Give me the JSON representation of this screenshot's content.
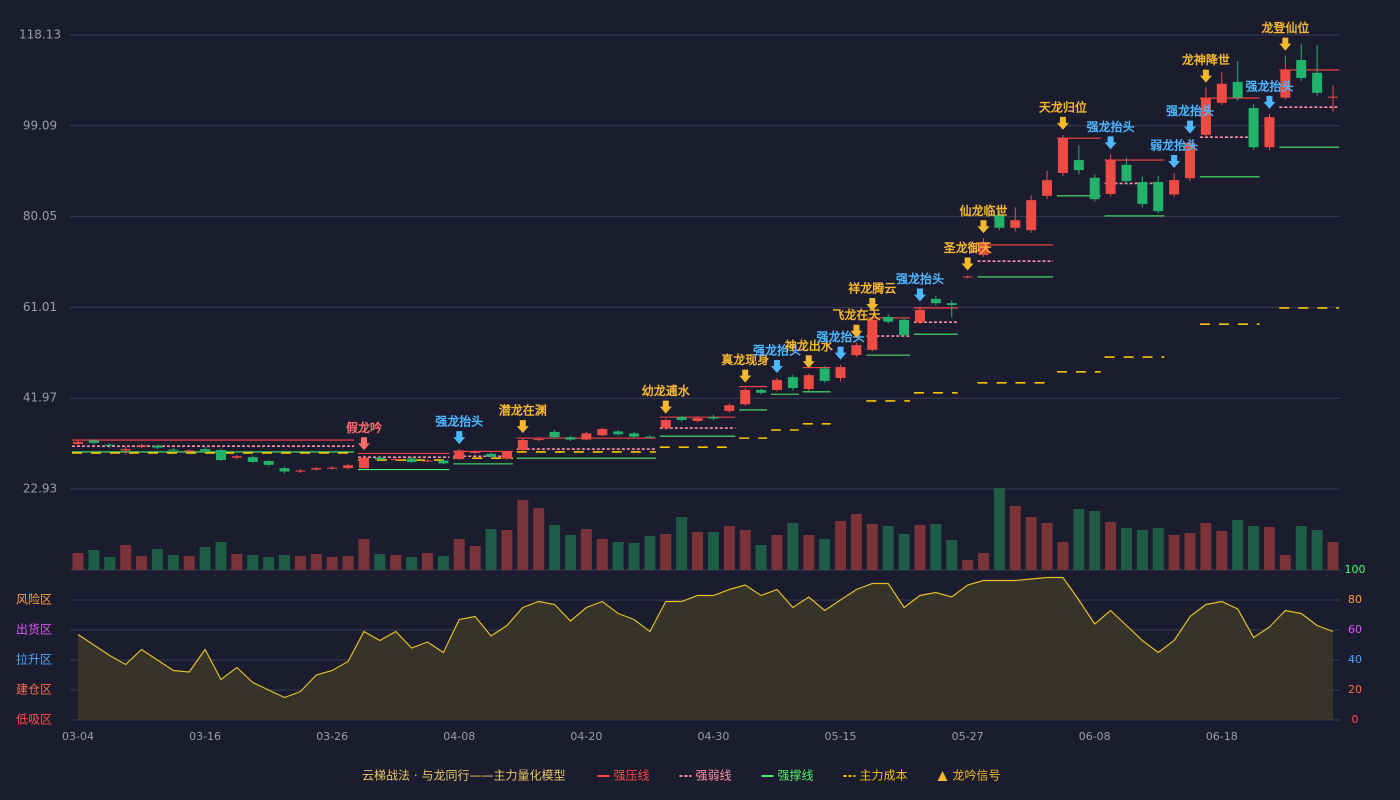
{
  "chart_data": {
    "type": "candlestick",
    "categories": [
      "03-04",
      null,
      null,
      null,
      null,
      null,
      null,
      null,
      "03-16",
      null,
      null,
      null,
      null,
      null,
      null,
      null,
      "03-26",
      null,
      null,
      null,
      null,
      null,
      null,
      null,
      "04-08",
      null,
      null,
      null,
      null,
      null,
      null,
      null,
      "04-20",
      null,
      null,
      null,
      null,
      null,
      null,
      null,
      "04-30",
      null,
      null,
      null,
      null,
      null,
      null,
      null,
      "05-15",
      null,
      null,
      null,
      null,
      null,
      null,
      null,
      "05-27",
      null,
      null,
      null,
      null,
      null,
      null,
      null,
      "06-08",
      null,
      null,
      null,
      null,
      null,
      null,
      null,
      "06-18",
      null,
      null,
      null,
      null,
      null,
      null,
      null
    ],
    "open": [
      32.4,
      33.1,
      32.2,
      31.0,
      31.8,
      32.0,
      31.2,
      30.8,
      31.3,
      31.1,
      29.5,
      29.6,
      28.8,
      27.3,
      26.6,
      27.0,
      27.2,
      27.3,
      27.3,
      29.5,
      29.0,
      29.3,
      28.7,
      28.9,
      29.2,
      30.5,
      30.3,
      29.3,
      31.1,
      33.2,
      34.9,
      33.8,
      33.3,
      34.2,
      35.0,
      34.6,
      33.9,
      35.7,
      38.0,
      37.2,
      38.0,
      39.3,
      40.7,
      43.7,
      43.7,
      46.4,
      43.9,
      48.2,
      46.2,
      51.0,
      52.1,
      59.0,
      58.4,
      57.9,
      62.8,
      61.9,
      67.3,
      72.0,
      80.4,
      77.7,
      77.2,
      84.4,
      89.2,
      91.9,
      88.2,
      84.8,
      90.9,
      87.3,
      87.3,
      84.7,
      88.1,
      97.2,
      103.9,
      108.3,
      102.8,
      94.6,
      105.0,
      112.9,
      110.2,
      105.0
    ],
    "close": [
      32.8,
      32.6,
      32.0,
      31.3,
      32.1,
      31.6,
      31.0,
      31.0,
      30.9,
      29.0,
      29.8,
      28.6,
      28.0,
      26.6,
      26.8,
      27.3,
      27.4,
      27.9,
      29.5,
      29.1,
      29.2,
      28.6,
      28.9,
      28.3,
      31.0,
      30.7,
      29.7,
      30.7,
      33.2,
      33.4,
      33.8,
      33.3,
      34.6,
      35.5,
      34.4,
      33.9,
      33.8,
      37.4,
      37.4,
      37.8,
      37.7,
      40.5,
      43.7,
      43.1,
      45.8,
      44.1,
      46.8,
      45.6,
      48.5,
      53.1,
      58.4,
      58.0,
      55.2,
      60.5,
      61.9,
      61.5,
      67.5,
      74.7,
      77.7,
      79.3,
      83.5,
      87.7,
      96.5,
      89.8,
      83.7,
      91.9,
      87.5,
      82.7,
      81.2,
      87.7,
      95.5,
      105.0,
      107.9,
      105.0,
      94.6,
      100.9,
      110.8,
      109.1,
      106.0,
      105.2
    ],
    "high": [
      33.1,
      33.4,
      32.5,
      31.8,
      32.4,
      32.3,
      31.5,
      31.3,
      31.7,
      31.4,
      30.1,
      29.9,
      29.0,
      27.6,
      27.1,
      27.5,
      27.7,
      28.2,
      30.0,
      29.8,
      29.5,
      29.6,
      29.2,
      29.1,
      31.3,
      31.0,
      30.6,
      30.9,
      33.6,
      33.8,
      35.3,
      34.1,
      34.9,
      35.8,
      35.3,
      34.9,
      34.2,
      37.7,
      38.3,
      38.1,
      38.5,
      40.9,
      44.2,
      44.0,
      46.2,
      46.9,
      47.2,
      48.7,
      49.0,
      53.6,
      59.2,
      59.6,
      58.9,
      61.2,
      63.4,
      62.5,
      67.7,
      75.5,
      81.5,
      82.0,
      84.5,
      89.6,
      97.2,
      95.0,
      88.9,
      93.1,
      92.4,
      88.5,
      88.6,
      89.2,
      96.4,
      107.1,
      110.3,
      112.7,
      103.6,
      101.6,
      113.8,
      116.3,
      116.0,
      107.5
    ],
    "low": [
      32.0,
      32.3,
      31.6,
      30.2,
      31.5,
      31.3,
      30.6,
      30.5,
      30.5,
      28.8,
      29.2,
      28.4,
      27.7,
      26.2,
      26.3,
      26.8,
      27.0,
      27.1,
      27.2,
      28.9,
      28.8,
      28.4,
      28.5,
      28.1,
      29.0,
      30.2,
      29.5,
      29.1,
      30.9,
      32.9,
      33.5,
      33.0,
      33.1,
      34.0,
      34.1,
      33.6,
      33.5,
      35.4,
      37.1,
      36.9,
      37.4,
      38.9,
      40.4,
      42.8,
      43.4,
      43.6,
      43.5,
      45.2,
      45.5,
      50.6,
      51.8,
      57.6,
      54.9,
      57.5,
      61.4,
      58.9,
      67.1,
      71.6,
      77.2,
      76.9,
      76.6,
      83.8,
      88.6,
      88.9,
      83.2,
      84.3,
      86.8,
      82.0,
      80.7,
      84.1,
      87.5,
      96.6,
      103.4,
      104.3,
      94.1,
      94.0,
      104.6,
      108.5,
      105.4,
      102.0
    ],
    "up_color": "#ef4b45",
    "down_color": "#22b26b",
    "ylim": [
      22.93,
      118.13
    ],
    "yticks": [
      22.93,
      41.97,
      61.01,
      80.05,
      99.09,
      118.13
    ],
    "grid": true,
    "volume": {
      "values": [
        17,
        20,
        13,
        25,
        14,
        21,
        15,
        14,
        23,
        28,
        16,
        15,
        13,
        15,
        14,
        16,
        13,
        14,
        31,
        16,
        15,
        13,
        17,
        14,
        31,
        24,
        41,
        40,
        70,
        62,
        45,
        35,
        41,
        31,
        28,
        27,
        34,
        36,
        53,
        38,
        38,
        44,
        40,
        25,
        35,
        47,
        35,
        31,
        49,
        56,
        46,
        44,
        36,
        45,
        46,
        30,
        10,
        17,
        82,
        64,
        53,
        47,
        28,
        61,
        59,
        48,
        42,
        40,
        42,
        35,
        37,
        47,
        39,
        50,
        44,
        43,
        15,
        44,
        40,
        28
      ],
      "up_color": "#7a3338",
      "down_color": "#1f5c45"
    },
    "indicator": {
      "values": [
        57,
        50,
        43,
        37,
        47,
        40,
        33,
        32,
        47,
        27,
        35,
        25,
        20,
        15,
        19,
        30,
        33,
        39,
        59,
        53,
        59,
        48,
        52,
        45,
        67,
        69,
        56,
        63,
        75,
        79,
        77,
        66,
        75,
        79,
        71,
        67,
        59,
        79,
        79,
        83,
        83,
        87,
        90,
        83,
        87,
        75,
        82,
        73,
        80,
        87,
        91,
        91,
        75,
        83,
        85,
        82,
        90,
        93,
        93,
        93,
        94,
        95,
        95,
        80,
        64,
        73,
        63,
        53,
        45,
        53,
        69,
        77,
        79,
        74,
        55,
        62,
        73,
        71,
        63,
        59
      ],
      "color": "#e2bf2a",
      "fill": "#3a3629",
      "ylim": [
        0,
        100
      ],
      "yticks": [
        0,
        20,
        40,
        60,
        80,
        100
      ],
      "ytick_colors": [
        "#ff4d4d",
        "#ff6b4a",
        "#4da6ff",
        "#e056fd",
        "#ff9f43",
        "#3dff6f"
      ],
      "zones": [
        {
          "label": "风险区",
          "value": 80,
          "color": "#ff9f43"
        },
        {
          "label": "出货区",
          "value": 60,
          "color": "#e056fd"
        },
        {
          "label": "拉升区",
          "value": 40,
          "color": "#4da6ff"
        },
        {
          "label": "建仓区",
          "value": 20,
          "color": "#ff6b4a"
        },
        {
          "label": "低吸区",
          "value": 0,
          "color": "#ff4d4d"
        }
      ]
    },
    "levels": [
      {
        "name": "强压线",
        "color": "#ff4444",
        "dash": false,
        "segments": [
          {
            "from": 0,
            "to": 17,
            "value": 33.2
          },
          {
            "from": 18,
            "to": 23,
            "value": 30.4
          },
          {
            "from": 24,
            "to": 27,
            "value": 30.8
          },
          {
            "from": 28,
            "to": 36,
            "value": 33.6
          },
          {
            "from": 37,
            "to": 41,
            "value": 38.0
          },
          {
            "from": 42,
            "to": 43,
            "value": 44.4
          },
          {
            "from": 46,
            "to": 47,
            "value": 48.4
          },
          {
            "from": 50,
            "to": 52,
            "value": 58.8
          },
          {
            "from": 53,
            "to": 55,
            "value": 60.9
          },
          {
            "from": 57,
            "to": 61,
            "value": 74.1
          },
          {
            "from": 62,
            "to": 64,
            "value": 96.5
          },
          {
            "from": 65,
            "to": 68,
            "value": 91.9
          },
          {
            "from": 71,
            "to": 74,
            "value": 104.9
          },
          {
            "from": 76,
            "to": 79,
            "value": 110.8
          }
        ]
      },
      {
        "name": "强弱线",
        "color": "#ff8fa8",
        "dash": true,
        "segments": [
          {
            "from": 0,
            "to": 17,
            "value": 31.9
          },
          {
            "from": 18,
            "to": 23,
            "value": 29.6
          },
          {
            "from": 24,
            "to": 27,
            "value": 29.8
          },
          {
            "from": 28,
            "to": 36,
            "value": 31.3
          },
          {
            "from": 37,
            "to": 41,
            "value": 35.7
          },
          {
            "from": 50,
            "to": 52,
            "value": 55.0
          },
          {
            "from": 53,
            "to": 55,
            "value": 57.9
          },
          {
            "from": 57,
            "to": 61,
            "value": 70.7
          },
          {
            "from": 65,
            "to": 68,
            "value": 87.0
          },
          {
            "from": 71,
            "to": 74,
            "value": 96.7
          },
          {
            "from": 76,
            "to": 79,
            "value": 103.0
          }
        ]
      },
      {
        "name": "强撑线",
        "color": "#4cf06a",
        "dash": false,
        "segments": [
          {
            "from": 0,
            "to": 17,
            "value": 30.7
          },
          {
            "from": 18,
            "to": 23,
            "value": 27.0
          },
          {
            "from": 24,
            "to": 27,
            "value": 28.2
          },
          {
            "from": 28,
            "to": 36,
            "value": 29.4
          },
          {
            "from": 37,
            "to": 41,
            "value": 34.0
          },
          {
            "from": 42,
            "to": 43,
            "value": 39.5
          },
          {
            "from": 44,
            "to": 45,
            "value": 42.8
          },
          {
            "from": 46,
            "to": 47,
            "value": 43.3
          },
          {
            "from": 50,
            "to": 52,
            "value": 51.0
          },
          {
            "from": 53,
            "to": 55,
            "value": 55.4
          },
          {
            "from": 57,
            "to": 61,
            "value": 67.4
          },
          {
            "from": 62,
            "to": 64,
            "value": 84.4
          },
          {
            "from": 65,
            "to": 68,
            "value": 80.2
          },
          {
            "from": 71,
            "to": 74,
            "value": 88.4
          },
          {
            "from": 76,
            "to": 79,
            "value": 94.6
          }
        ]
      },
      {
        "name": "主力成本",
        "color": "#f5c400",
        "dash": true,
        "segments": [
          {
            "from": 0,
            "to": 17,
            "value": 30.5
          },
          {
            "from": 18,
            "to": 23,
            "value": 29.0
          },
          {
            "from": 24,
            "to": 27,
            "value": 29.4
          },
          {
            "from": 28,
            "to": 36,
            "value": 30.7
          },
          {
            "from": 37,
            "to": 41,
            "value": 31.7
          },
          {
            "from": 42,
            "to": 43,
            "value": 33.6
          },
          {
            "from": 44,
            "to": 45,
            "value": 35.3
          },
          {
            "from": 46,
            "to": 47,
            "value": 36.6
          },
          {
            "from": 50,
            "to": 52,
            "value": 41.4
          },
          {
            "from": 53,
            "to": 55,
            "value": 43.1
          },
          {
            "from": 57,
            "to": 61,
            "value": 45.2
          },
          {
            "from": 62,
            "to": 64,
            "value": 47.5
          },
          {
            "from": 65,
            "to": 68,
            "value": 50.6
          },
          {
            "from": 71,
            "to": 74,
            "value": 57.5
          },
          {
            "from": 76,
            "to": 79,
            "value": 60.9
          }
        ]
      }
    ],
    "signals": [
      {
        "at": 18,
        "label": "假龙吟",
        "color": "#ff6b6b"
      },
      {
        "at": 24,
        "label": "强龙抬头",
        "color": "#4db8ff"
      },
      {
        "at": 28,
        "label": "潜龙在渊",
        "color": "#f5b82e"
      },
      {
        "at": 37,
        "label": "幼龙逋水",
        "color": "#f5b82e"
      },
      {
        "at": 42,
        "label": "真龙现身",
        "color": "#f5b82e"
      },
      {
        "at": 44,
        "label": "强龙抬头",
        "color": "#4db8ff"
      },
      {
        "at": 46,
        "label": "神龙出水",
        "color": "#f5b82e"
      },
      {
        "at": 48,
        "label": "强龙抬头",
        "color": "#4db8ff"
      },
      {
        "at": 49,
        "label": "飞龙在天",
        "color": "#f5b82e"
      },
      {
        "at": 50,
        "label": "祥龙腾云",
        "color": "#f5b82e"
      },
      {
        "at": 53,
        "label": "强龙抬头",
        "color": "#4db8ff"
      },
      {
        "at": 56,
        "label": "圣龙御天",
        "color": "#f5b82e"
      },
      {
        "at": 57,
        "label": "仙龙临世",
        "color": "#f5b82e"
      },
      {
        "at": 62,
        "label": "天龙归位",
        "color": "#f5b82e"
      },
      {
        "at": 65,
        "label": "强龙抬头",
        "color": "#4db8ff"
      },
      {
        "at": 69,
        "label": "弱龙抬头",
        "color": "#4db8ff"
      },
      {
        "at": 70,
        "label": "强龙抬头",
        "color": "#4db8ff"
      },
      {
        "at": 71,
        "label": "龙神降世",
        "color": "#f5b82e"
      },
      {
        "at": 75,
        "label": "强龙抬头",
        "color": "#4db8ff"
      },
      {
        "at": 76,
        "label": "龙登仙位",
        "color": "#f5b82e"
      }
    ],
    "legend_title": "云梯战法 · 与龙同行——主力量化模型",
    "signal_legend": {
      "name": "龙吟信号",
      "color": "#f5b82e"
    }
  }
}
